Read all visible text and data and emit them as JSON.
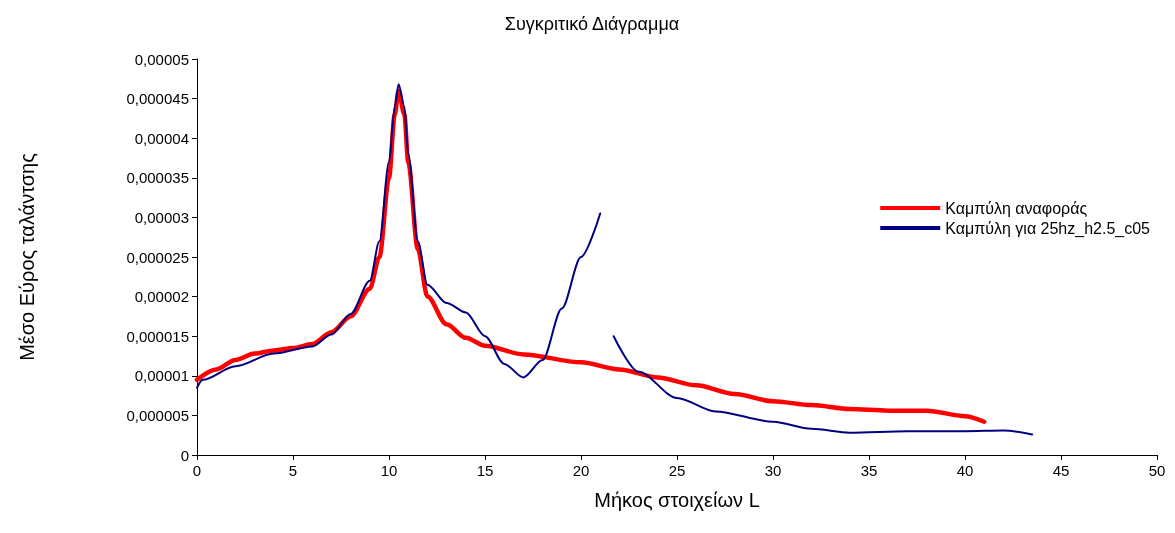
{
  "chart_data": {
    "type": "line",
    "title": "Συγκριτικό Διάγραμμα",
    "xlabel": "Μήκος στοιχείων L",
    "ylabel": "Μέσο Εύρος ταλάντσης",
    "xlim": [
      0,
      50
    ],
    "xticks": [
      0,
      5,
      10,
      15,
      20,
      25,
      30,
      35,
      40,
      45,
      50
    ],
    "ylim": [
      0,
      5e-05
    ],
    "yticks": [
      {
        "value": 0,
        "label": "0"
      },
      {
        "value": 5e-06,
        "label": "0,000005"
      },
      {
        "value": 1e-05,
        "label": "0,00001"
      },
      {
        "value": 1.5e-05,
        "label": "0,000015"
      },
      {
        "value": 2e-05,
        "label": "0,00002"
      },
      {
        "value": 2.5e-05,
        "label": "0,000025"
      },
      {
        "value": 3e-05,
        "label": "0,00003"
      },
      {
        "value": 3.5e-05,
        "label": "0,000035"
      },
      {
        "value": 4e-05,
        "label": "0,00004"
      },
      {
        "value": 4.5e-05,
        "label": "0,000045"
      },
      {
        "value": 5e-05,
        "label": "0,00005"
      }
    ],
    "grid": false,
    "legend": "right",
    "marker": "none",
    "line_style": "solid",
    "series": [
      {
        "name": "Καμπύλη αναφοράς",
        "color": "#ff0000",
        "x": [
          0,
          1,
          2,
          3,
          4,
          5,
          6,
          7,
          8,
          9,
          9.5,
          10,
          10.3,
          10.5,
          10.8,
          11,
          11.5,
          12,
          13,
          14,
          15,
          17,
          20,
          22,
          24,
          26,
          28,
          30,
          32,
          34,
          36,
          38,
          40,
          41
        ],
        "values": [
          9.5e-06,
          1.08e-05,
          1.2e-05,
          1.28e-05,
          1.32e-05,
          1.35e-05,
          1.4e-05,
          1.55e-05,
          1.75e-05,
          2.1e-05,
          2.5e-05,
          3.5e-05,
          4.3e-05,
          4.6e-05,
          4.3e-05,
          3.7e-05,
          2.6e-05,
          2e-05,
          1.65e-05,
          1.48e-05,
          1.38e-05,
          1.27e-05,
          1.17e-05,
          1.08e-05,
          9.8e-06,
          8.8e-06,
          7.7e-06,
          6.8e-06,
          6.3e-06,
          5.8e-06,
          5.6e-06,
          5.6e-06,
          4.9e-06,
          4.2e-06
        ]
      },
      {
        "name": "Καμπύλη για 25hz_h2.5_c05",
        "color": "#000080",
        "x": [
          0,
          0.3,
          2,
          4,
          6,
          7,
          8,
          9,
          9.5,
          10,
          10.3,
          10.5,
          10.8,
          11,
          11.5,
          12,
          13,
          14,
          15,
          16,
          17,
          18,
          19,
          20,
          21,
          21.3,
          21.7,
          23,
          25,
          27,
          30,
          32,
          34,
          37,
          40,
          42,
          43.5
        ],
        "values": [
          8.5e-06,
          9.5e-06,
          1.12e-05,
          1.28e-05,
          1.37e-05,
          1.52e-05,
          1.78e-05,
          2.2e-05,
          2.7e-05,
          3.7e-05,
          4.4e-05,
          4.68e-05,
          4.4e-05,
          3.8e-05,
          2.7e-05,
          2.15e-05,
          1.92e-05,
          1.8e-05,
          1.5e-05,
          1.15e-05,
          9.8e-06,
          1.2e-05,
          1.85e-05,
          2.5e-05,
          3.05e-05,
          null,
          1.5e-05,
          1.05e-05,
          7.2e-06,
          5.5e-06,
          4.2e-06,
          3.3e-06,
          2.8e-06,
          3e-06,
          3e-06,
          3.1e-06,
          2.6e-06
        ]
      }
    ]
  }
}
